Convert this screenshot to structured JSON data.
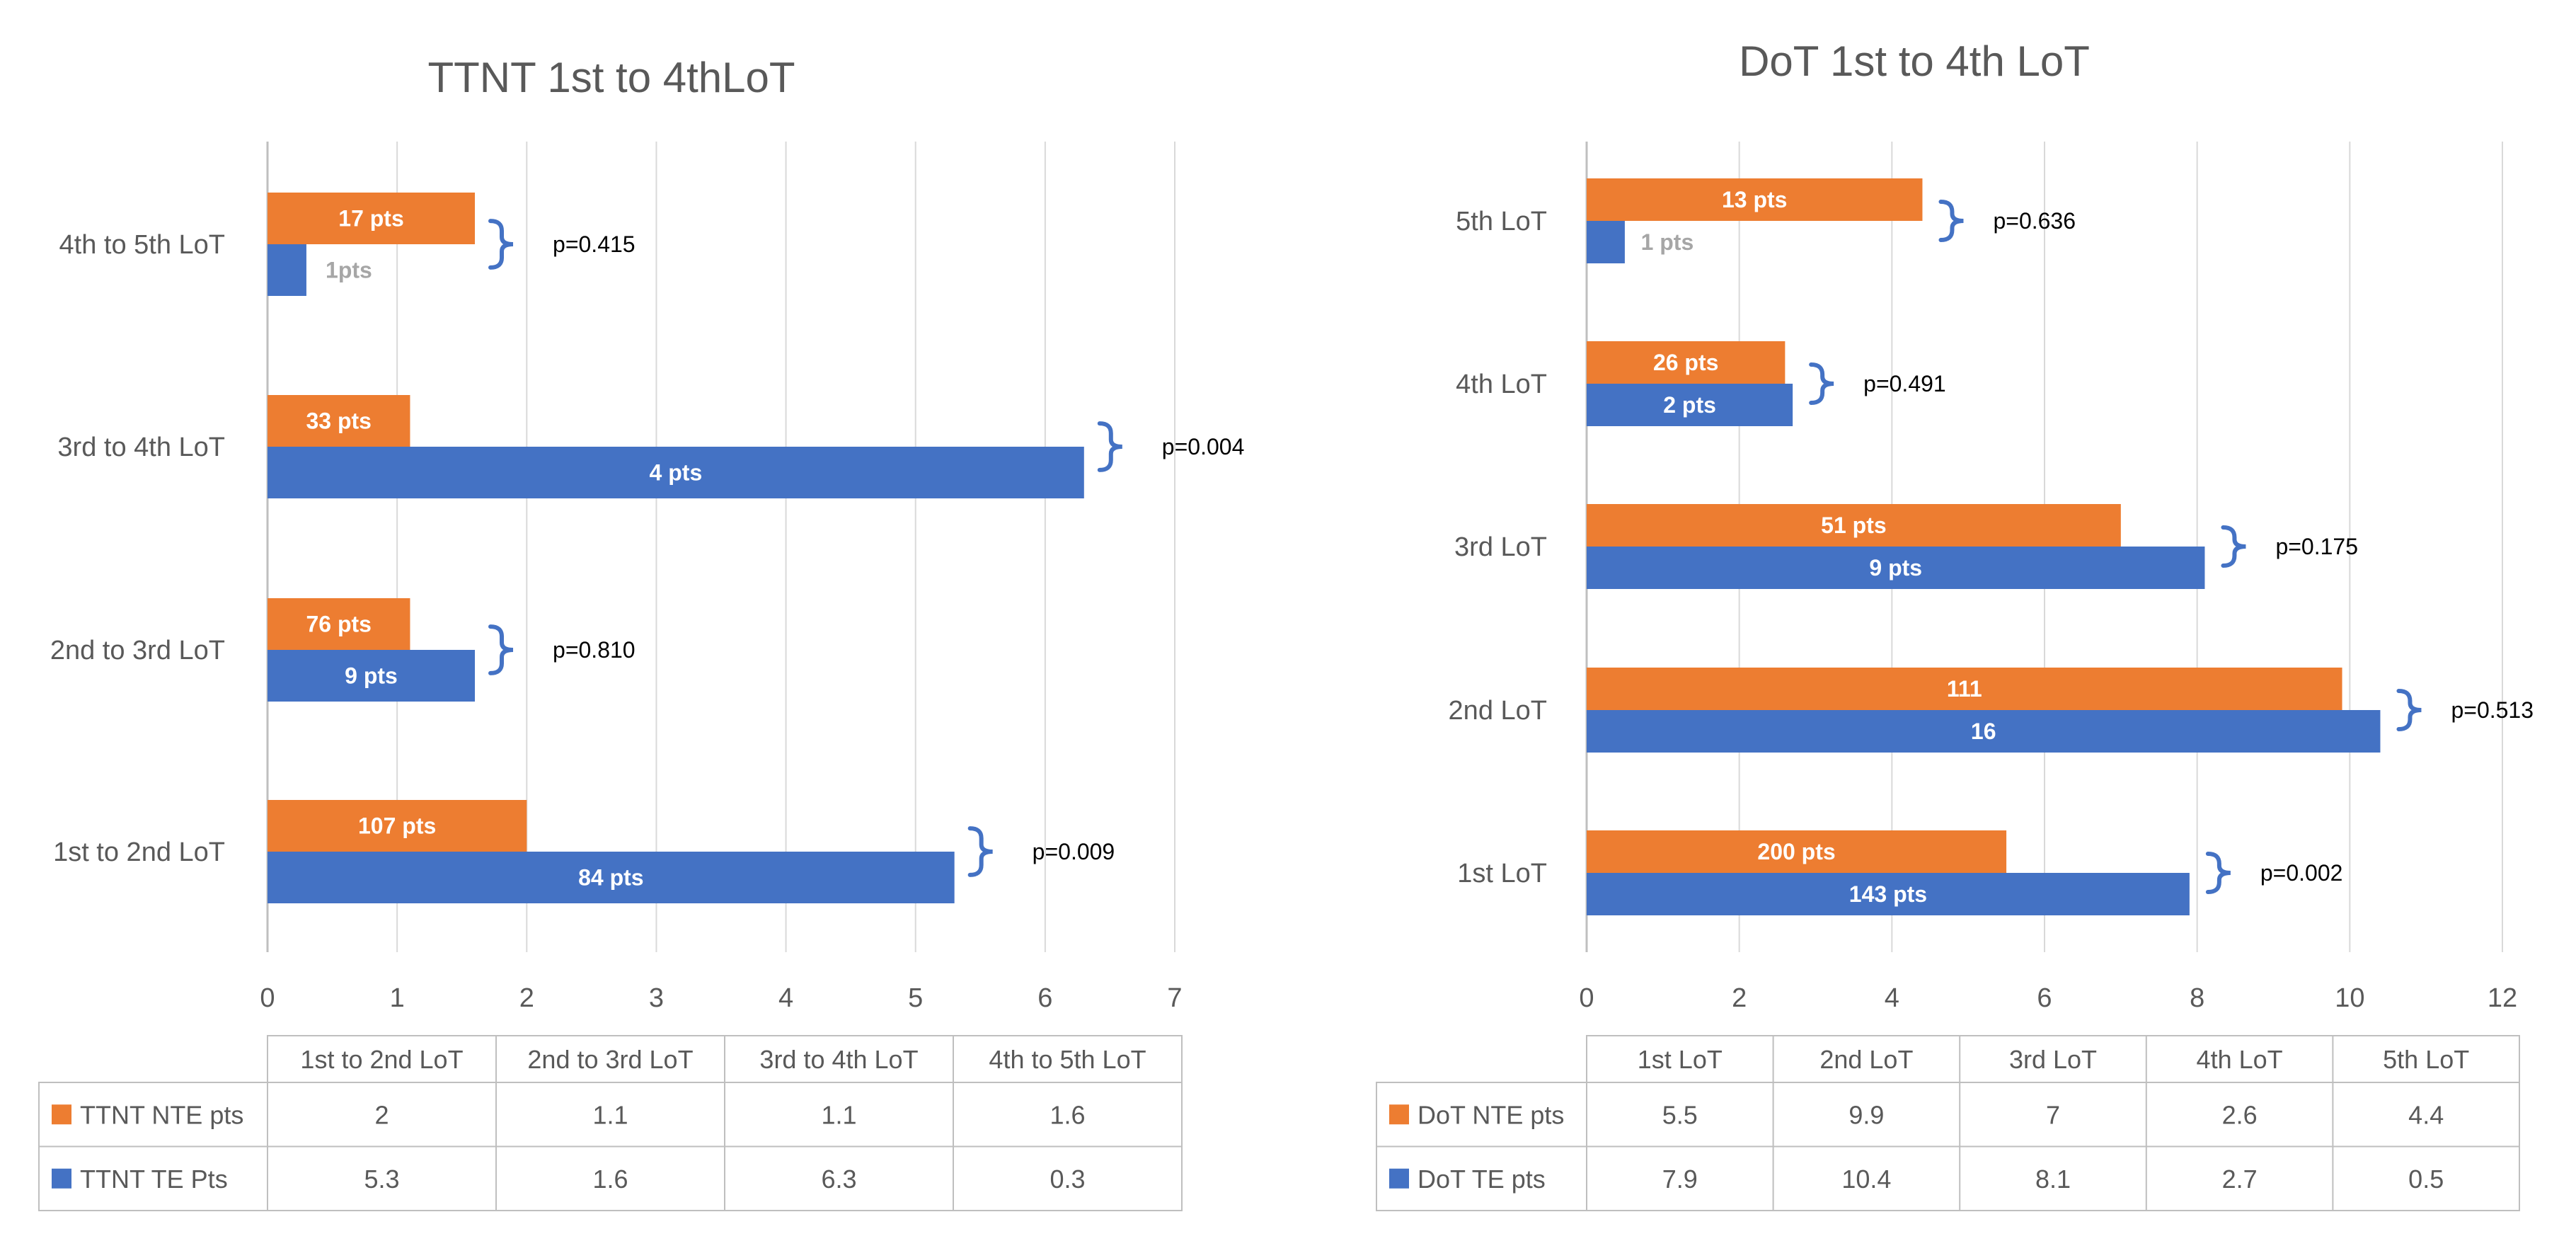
{
  "colors": {
    "nte": "#ED7D31",
    "te": "#4472C4",
    "grid": "#D9D9D9",
    "axis_text": "#595959",
    "title_text": "#595959",
    "table_border": "#BFBFBF",
    "bar_label": "#FFFFFF",
    "bar_label_small": "#A6A6A6",
    "pvalue_text": "#000000"
  },
  "chart_data": [
    {
      "type": "bar",
      "orientation": "horizontal",
      "title": "TTNT 1st to 4thLoT",
      "categories": [
        "1st to 2nd LoT",
        "2nd to 3rd LoT",
        "3rd to 4th LoT",
        "4th to 5th LoT"
      ],
      "series": [
        {
          "name": "TTNT NTE pts",
          "color_key": "nte",
          "values": [
            2,
            1.1,
            1.1,
            1.6
          ],
          "bar_labels": [
            "107 pts",
            "76 pts",
            "33 pts",
            "17 pts"
          ]
        },
        {
          "name": "TTNT TE Pts",
          "color_key": "te",
          "values": [
            5.3,
            1.6,
            6.3,
            0.3
          ],
          "bar_labels": [
            "84 pts",
            "9 pts",
            "4 pts",
            "1pts"
          ]
        }
      ],
      "p_values": [
        "p=0.009",
        "p=0.810",
        "p=0.004",
        "p=0.415"
      ],
      "xlim": [
        0,
        7
      ],
      "xticks": [
        "0",
        "1",
        "2",
        "3",
        "4",
        "5",
        "6",
        "7"
      ],
      "table_values": [
        [
          "2",
          "1.1",
          "1.1",
          "1.6"
        ],
        [
          "5.3",
          "1.6",
          "6.3",
          "0.3"
        ]
      ],
      "legend": "data-table"
    },
    {
      "type": "bar",
      "orientation": "horizontal",
      "title": "DoT 1st to 4th LoT",
      "categories": [
        "1st LoT",
        "2nd LoT",
        "3rd LoT",
        "4th LoT",
        "5th LoT"
      ],
      "series": [
        {
          "name": "DoT NTE pts",
          "color_key": "nte",
          "values": [
            5.5,
            9.9,
            7,
            2.6,
            4.4
          ],
          "bar_labels": [
            "200 pts",
            "111",
            "51 pts",
            "26 pts",
            "13 pts"
          ]
        },
        {
          "name": "DoT TE pts",
          "color_key": "te",
          "values": [
            7.9,
            10.4,
            8.1,
            2.7,
            0.5
          ],
          "bar_labels": [
            "143 pts",
            "16",
            "9 pts",
            "2 pts",
            "1 pts"
          ]
        }
      ],
      "p_values": [
        "p=0.002",
        "p=0.513",
        "p=0.175",
        "p=0.491",
        "p=0.636"
      ],
      "xlim": [
        0,
        12
      ],
      "xticks": [
        "0",
        "2",
        "4",
        "6",
        "8",
        "10",
        "12"
      ],
      "table_values": [
        [
          "5.5",
          "9.9",
          "7",
          "2.6",
          "4.4"
        ],
        [
          "7.9",
          "10.4",
          "8.1",
          "2.7",
          "0.5"
        ]
      ],
      "legend": "data-table"
    }
  ]
}
